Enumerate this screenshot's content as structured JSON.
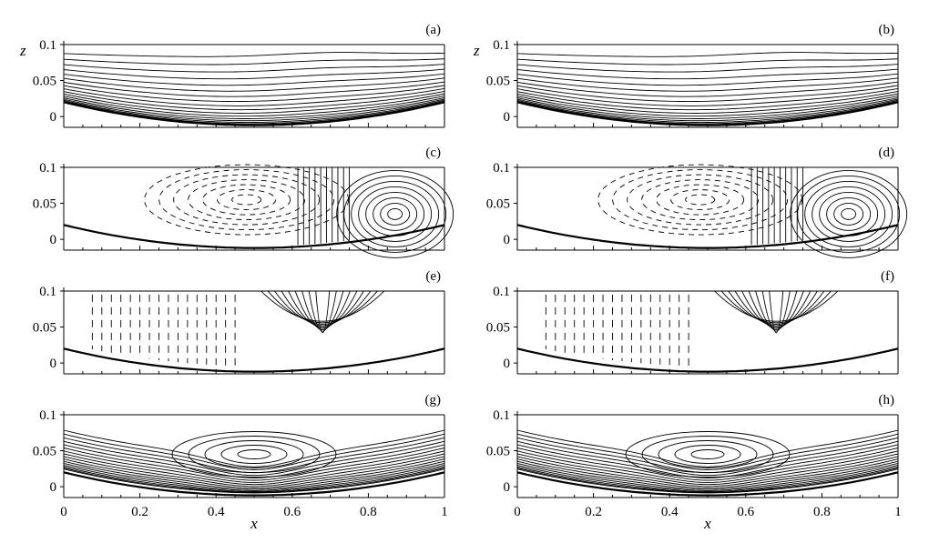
{
  "chart_data": [
    {
      "type": "contour",
      "panel_label": "(a)",
      "xlim": [
        0,
        1
      ],
      "ylim": [
        -0.015,
        0.105
      ],
      "yticks": [
        "0.1",
        "0.05",
        "0"
      ],
      "ylabel": "z",
      "xlabel": "",
      "xticks": [],
      "field": "stratified",
      "line_style": "solid"
    },
    {
      "type": "contour",
      "panel_label": "(b)",
      "xlim": [
        0,
        1
      ],
      "ylim": [
        -0.015,
        0.105
      ],
      "yticks": [
        "0.1",
        "0.05",
        "0"
      ],
      "ylabel": "z",
      "xlabel": "",
      "xticks": [],
      "field": "stratified",
      "line_style": "solid"
    },
    {
      "type": "contour",
      "panel_label": "(c)",
      "xlim": [
        0,
        1
      ],
      "ylim": [
        -0.015,
        0.105
      ],
      "yticks": [
        "0.1",
        "0.05",
        "0"
      ],
      "ylabel": "",
      "xlabel": "",
      "xticks": [],
      "field": "eddies",
      "line_style": "solid + dashed"
    },
    {
      "type": "contour",
      "panel_label": "(d)",
      "xlim": [
        0,
        1
      ],
      "ylim": [
        -0.015,
        0.105
      ],
      "yticks": [
        "0.1",
        "0.05",
        "0"
      ],
      "ylabel": "",
      "xlabel": "",
      "xticks": [],
      "field": "eddies",
      "line_style": "solid + dashed"
    },
    {
      "type": "contour",
      "panel_label": "(e)",
      "xlim": [
        0,
        1
      ],
      "ylim": [
        -0.015,
        0.105
      ],
      "yticks": [
        "0.1",
        "0.05",
        "0"
      ],
      "ylabel": "",
      "xlabel": "",
      "xticks": [],
      "field": "vertical",
      "line_style": "solid + dashed"
    },
    {
      "type": "contour",
      "panel_label": "(f)",
      "xlim": [
        0,
        1
      ],
      "ylim": [
        -0.015,
        0.105
      ],
      "yticks": [
        "0.1",
        "0.05",
        "0"
      ],
      "ylabel": "",
      "xlabel": "",
      "xticks": [],
      "field": "vertical",
      "line_style": "solid + dashed"
    },
    {
      "type": "contour",
      "panel_label": "(g)",
      "xlim": [
        0,
        1
      ],
      "ylim": [
        -0.015,
        0.105
      ],
      "yticks": [
        "0.1",
        "0.05",
        "0"
      ],
      "ylabel": "",
      "xlabel": "x",
      "xticks": [
        "0",
        "0.2",
        "0.4",
        "0.6",
        "0.8",
        "1"
      ],
      "field": "boundary-layer",
      "line_style": "solid"
    },
    {
      "type": "contour",
      "panel_label": "(h)",
      "xlim": [
        0,
        1
      ],
      "ylim": [
        -0.015,
        0.105
      ],
      "yticks": [
        "0.1",
        "0.05",
        "0"
      ],
      "ylabel": "",
      "xlabel": "x",
      "xticks": [
        "0",
        "0.2",
        "0.4",
        "0.6",
        "0.8",
        "1"
      ],
      "field": "boundary-layer",
      "line_style": "solid"
    }
  ],
  "bottom_topography": {
    "z_edge": 0.02,
    "z_min": -0.012,
    "x_min": 0.5
  },
  "line_color": "#000000"
}
